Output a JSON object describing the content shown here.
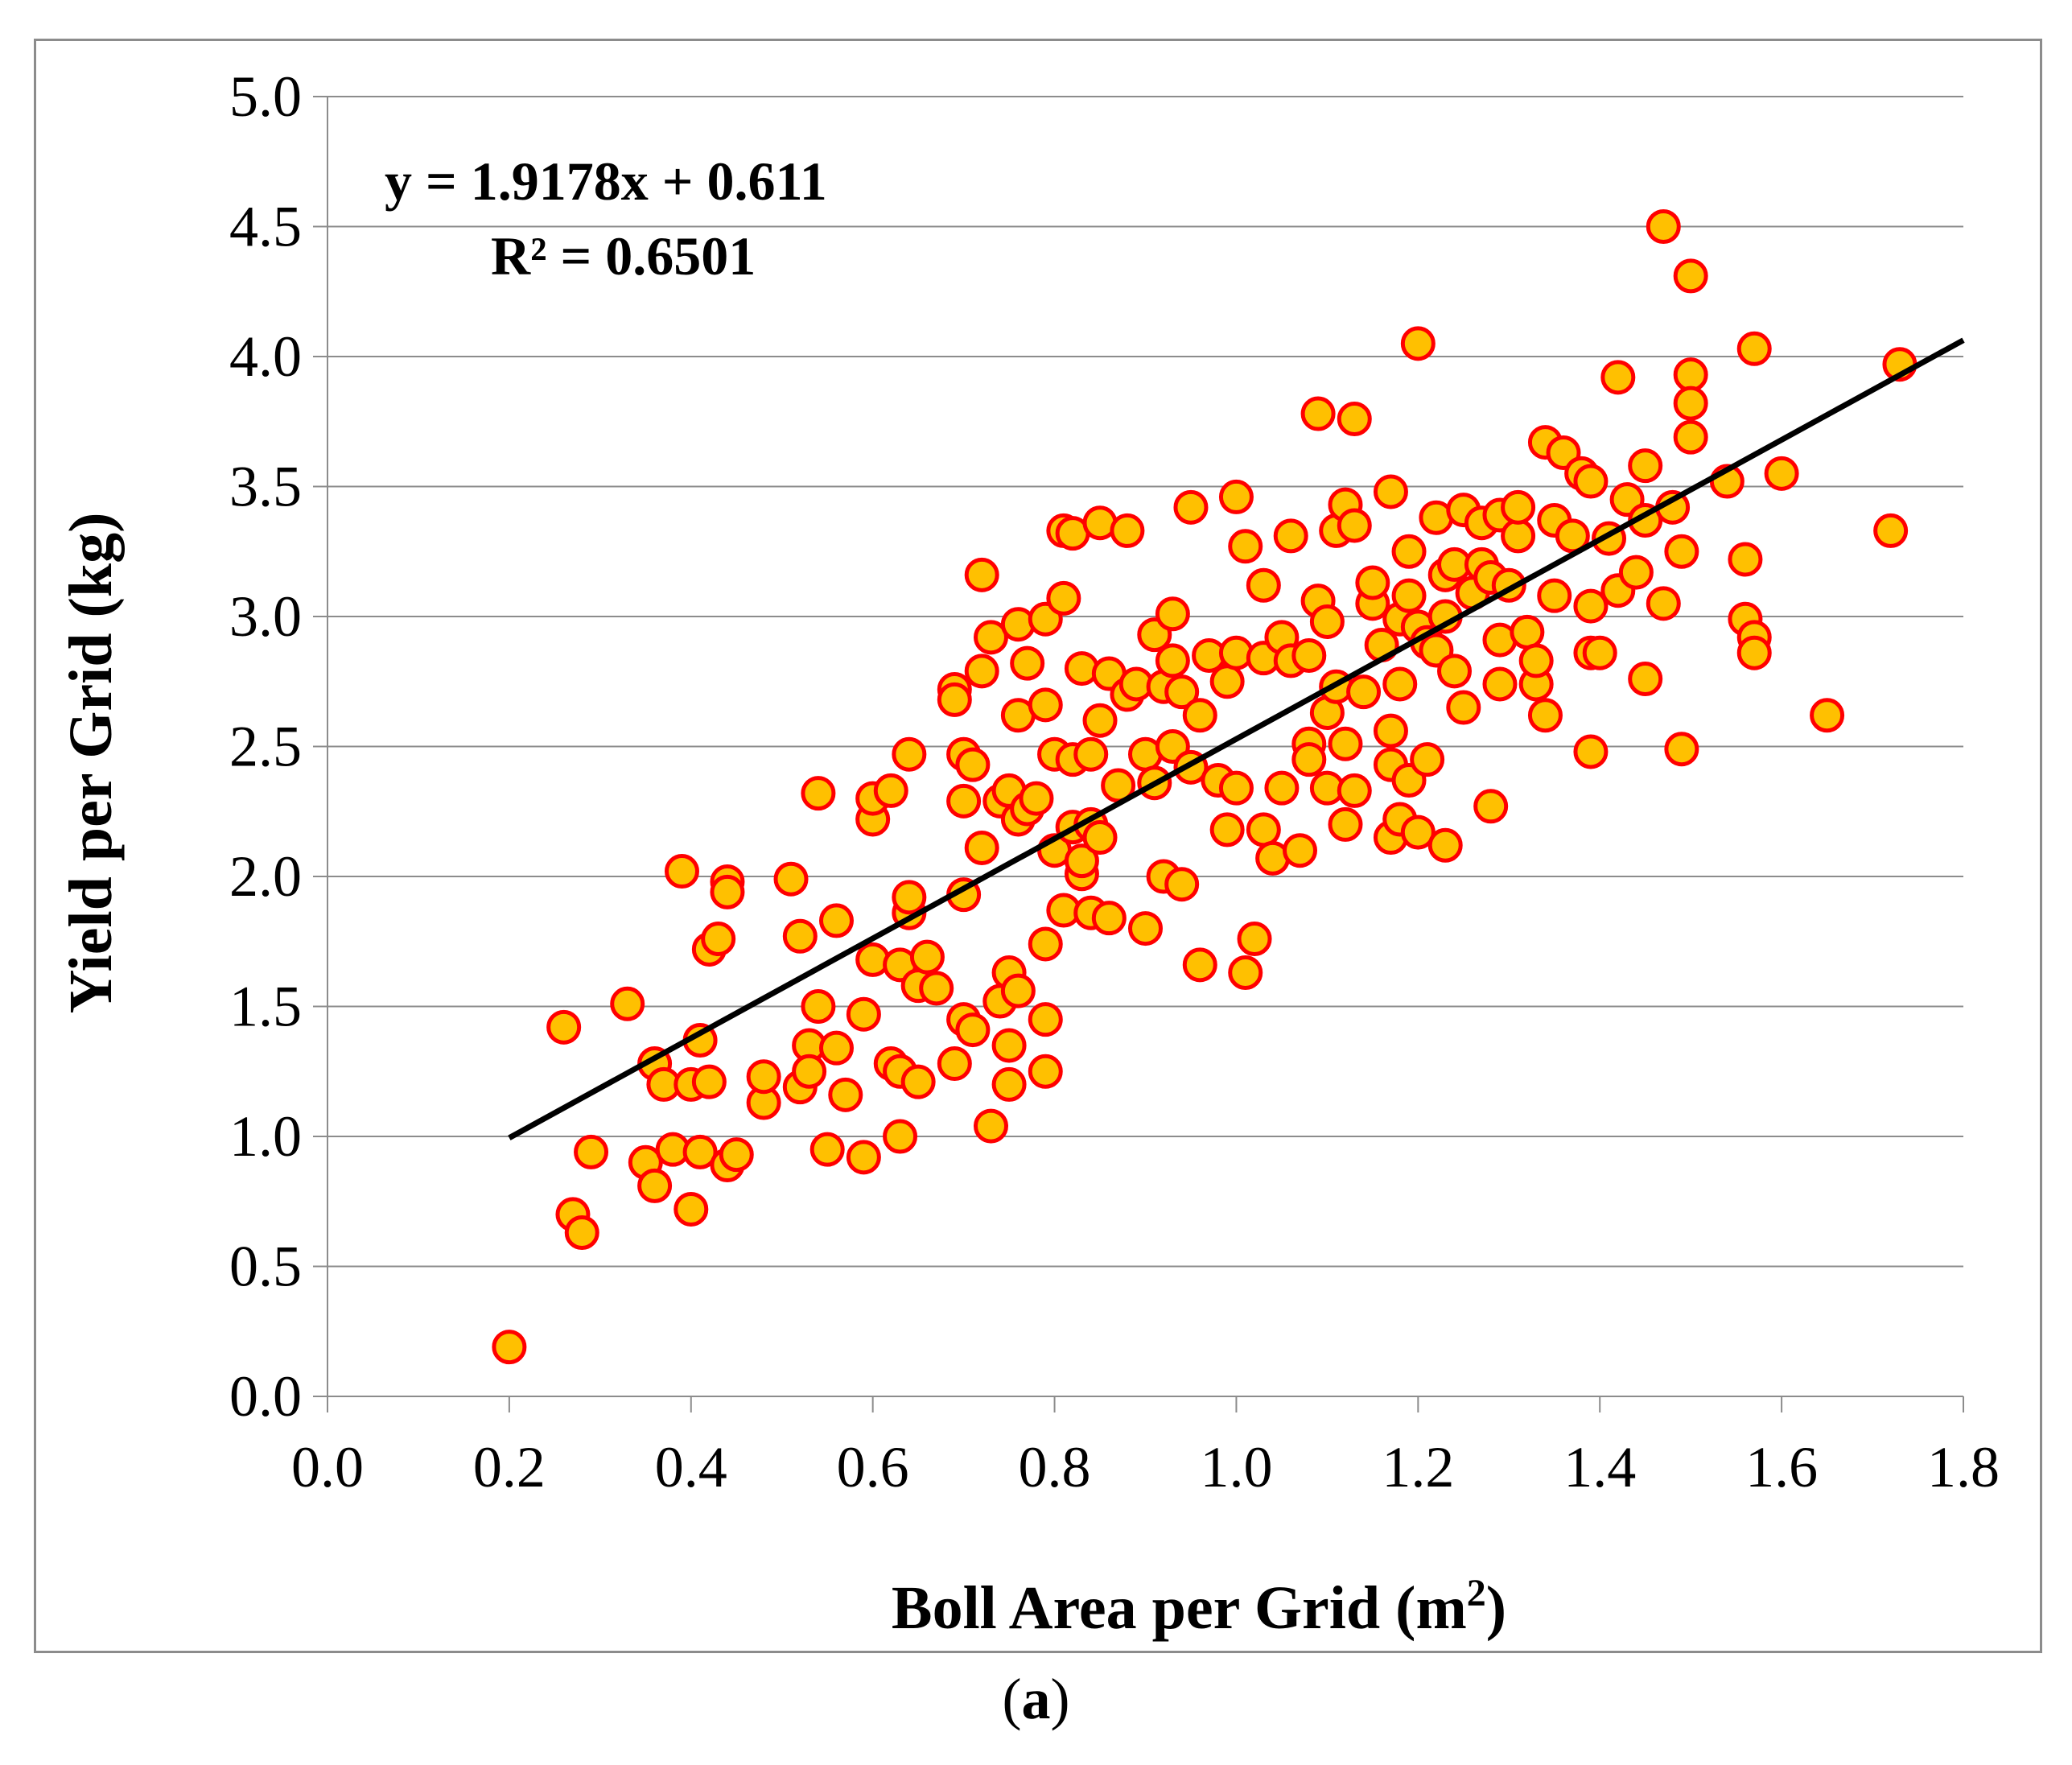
{
  "chart_data": {
    "type": "scatter",
    "xlabel": "Boll Area per Grid (m",
    "xlabel_sup": "2",
    "xlabel_end": ")",
    "ylabel": "Yield per Grid (kg)",
    "xlim": [
      0.0,
      1.8
    ],
    "ylim": [
      0.0,
      5.0
    ],
    "x_ticks": [
      "0.0",
      "0.2",
      "0.4",
      "0.6",
      "0.8",
      "1.0",
      "1.2",
      "1.4",
      "1.6",
      "1.8"
    ],
    "y_ticks": [
      "0.0",
      "0.5",
      "1.0",
      "1.5",
      "2.0",
      "2.5",
      "3.0",
      "3.5",
      "4.0",
      "4.5",
      "5.0"
    ],
    "grid": true,
    "equation": "y = 1.9178x + 0.611",
    "r_squared": "R² = 0.6501",
    "trendline": {
      "slope": 1.9178,
      "intercept": 0.611,
      "x_start": 0.2,
      "x_end": 1.8
    },
    "marker_fill": "#ffc000",
    "marker_edge": "#ff0000",
    "line_color": "#000000",
    "points": [
      [
        0.2,
        0.19
      ],
      [
        0.26,
        1.42
      ],
      [
        0.27,
        0.7
      ],
      [
        0.28,
        0.63
      ],
      [
        0.29,
        0.94
      ],
      [
        0.33,
        1.51
      ],
      [
        0.35,
        0.9
      ],
      [
        0.36,
        0.81
      ],
      [
        0.36,
        1.28
      ],
      [
        0.37,
        1.2
      ],
      [
        0.38,
        0.95
      ],
      [
        0.39,
        2.02
      ],
      [
        0.4,
        0.72
      ],
      [
        0.4,
        1.2
      ],
      [
        0.41,
        1.37
      ],
      [
        0.41,
        0.94
      ],
      [
        0.42,
        1.21
      ],
      [
        0.42,
        1.72
      ],
      [
        0.43,
        1.76
      ],
      [
        0.44,
        0.89
      ],
      [
        0.44,
        1.98
      ],
      [
        0.44,
        1.94
      ],
      [
        0.45,
        0.93
      ],
      [
        0.48,
        1.13
      ],
      [
        0.48,
        1.23
      ],
      [
        0.51,
        1.99
      ],
      [
        0.52,
        1.19
      ],
      [
        0.52,
        1.77
      ],
      [
        0.53,
        1.35
      ],
      [
        0.53,
        1.25
      ],
      [
        0.54,
        1.5
      ],
      [
        0.54,
        2.32
      ],
      [
        0.55,
        0.95
      ],
      [
        0.56,
        1.34
      ],
      [
        0.56,
        1.83
      ],
      [
        0.57,
        1.16
      ],
      [
        0.59,
        0.92
      ],
      [
        0.59,
        1.47
      ],
      [
        0.6,
        1.68
      ],
      [
        0.6,
        2.22
      ],
      [
        0.6,
        2.3
      ],
      [
        0.62,
        2.33
      ],
      [
        0.62,
        1.28
      ],
      [
        0.63,
        1.25
      ],
      [
        0.63,
        1.0
      ],
      [
        0.63,
        1.66
      ],
      [
        0.64,
        1.86
      ],
      [
        0.64,
        1.92
      ],
      [
        0.64,
        2.47
      ],
      [
        0.65,
        1.58
      ],
      [
        0.65,
        1.21
      ],
      [
        0.66,
        1.69
      ],
      [
        0.67,
        1.57
      ],
      [
        0.69,
        2.72
      ],
      [
        0.69,
        2.68
      ],
      [
        0.69,
        1.28
      ],
      [
        0.7,
        1.45
      ],
      [
        0.7,
        2.29
      ],
      [
        0.7,
        2.47
      ],
      [
        0.7,
        1.93
      ],
      [
        0.71,
        2.43
      ],
      [
        0.71,
        1.41
      ],
      [
        0.72,
        3.16
      ],
      [
        0.72,
        2.11
      ],
      [
        0.72,
        2.79
      ],
      [
        0.73,
        1.04
      ],
      [
        0.73,
        2.92
      ],
      [
        0.74,
        1.52
      ],
      [
        0.74,
        2.29
      ],
      [
        0.75,
        1.63
      ],
      [
        0.75,
        1.35
      ],
      [
        0.75,
        1.2
      ],
      [
        0.75,
        2.33
      ],
      [
        0.76,
        2.62
      ],
      [
        0.76,
        2.22
      ],
      [
        0.76,
        2.97
      ],
      [
        0.76,
        1.56
      ],
      [
        0.77,
        2.82
      ],
      [
        0.77,
        2.26
      ],
      [
        0.78,
        2.3
      ],
      [
        0.79,
        2.66
      ],
      [
        0.79,
        1.45
      ],
      [
        0.79,
        1.25
      ],
      [
        0.79,
        1.74
      ],
      [
        0.79,
        2.99
      ],
      [
        0.8,
        2.1
      ],
      [
        0.8,
        2.47
      ],
      [
        0.81,
        3.33
      ],
      [
        0.81,
        1.87
      ],
      [
        0.81,
        3.07
      ],
      [
        0.82,
        2.45
      ],
      [
        0.82,
        3.32
      ],
      [
        0.82,
        2.19
      ],
      [
        0.83,
        2.01
      ],
      [
        0.83,
        2.06
      ],
      [
        0.83,
        2.8
      ],
      [
        0.84,
        2.2
      ],
      [
        0.84,
        2.47
      ],
      [
        0.84,
        1.86
      ],
      [
        0.85,
        3.36
      ],
      [
        0.85,
        2.15
      ],
      [
        0.85,
        2.6
      ],
      [
        0.86,
        1.84
      ],
      [
        0.86,
        2.78
      ],
      [
        0.87,
        2.35
      ],
      [
        0.88,
        3.33
      ],
      [
        0.88,
        2.7
      ],
      [
        0.89,
        2.74
      ],
      [
        0.9,
        2.47
      ],
      [
        0.9,
        1.8
      ],
      [
        0.91,
        2.93
      ],
      [
        0.91,
        2.36
      ],
      [
        0.92,
        2.73
      ],
      [
        0.92,
        2.0
      ],
      [
        0.93,
        2.5
      ],
      [
        0.93,
        2.83
      ],
      [
        0.93,
        3.01
      ],
      [
        0.94,
        1.97
      ],
      [
        0.94,
        2.71
      ],
      [
        0.95,
        3.42
      ],
      [
        0.95,
        2.42
      ],
      [
        0.96,
        1.66
      ],
      [
        0.96,
        2.62
      ],
      [
        0.97,
        2.85
      ],
      [
        0.98,
        2.37
      ],
      [
        0.99,
        2.18
      ],
      [
        0.99,
        2.75
      ],
      [
        1.0,
        2.86
      ],
      [
        1.0,
        2.34
      ],
      [
        1.0,
        3.46
      ],
      [
        1.01,
        1.63
      ],
      [
        1.01,
        3.27
      ],
      [
        1.02,
        1.76
      ],
      [
        1.03,
        2.18
      ],
      [
        1.03,
        2.84
      ],
      [
        1.03,
        3.12
      ],
      [
        1.04,
        2.07
      ],
      [
        1.05,
        2.92
      ],
      [
        1.05,
        2.34
      ],
      [
        1.06,
        2.83
      ],
      [
        1.06,
        3.31
      ],
      [
        1.07,
        2.1
      ],
      [
        1.08,
        2.51
      ],
      [
        1.08,
        2.45
      ],
      [
        1.08,
        2.85
      ],
      [
        1.09,
        3.06
      ],
      [
        1.09,
        3.78
      ],
      [
        1.1,
        2.63
      ],
      [
        1.1,
        2.98
      ],
      [
        1.1,
        2.34
      ],
      [
        1.11,
        2.73
      ],
      [
        1.11,
        3.33
      ],
      [
        1.12,
        2.51
      ],
      [
        1.12,
        3.43
      ],
      [
        1.12,
        2.2
      ],
      [
        1.13,
        3.35
      ],
      [
        1.13,
        3.76
      ],
      [
        1.13,
        2.33
      ],
      [
        1.14,
        2.71
      ],
      [
        1.15,
        3.05
      ],
      [
        1.15,
        3.13
      ],
      [
        1.16,
        2.89
      ],
      [
        1.17,
        2.15
      ],
      [
        1.17,
        2.56
      ],
      [
        1.17,
        2.43
      ],
      [
        1.17,
        3.48
      ],
      [
        1.18,
        2.22
      ],
      [
        1.18,
        2.99
      ],
      [
        1.18,
        2.74
      ],
      [
        1.19,
        3.25
      ],
      [
        1.19,
        2.37
      ],
      [
        1.19,
        3.08
      ],
      [
        1.2,
        2.17
      ],
      [
        1.2,
        2.96
      ],
      [
        1.2,
        4.05
      ],
      [
        1.21,
        2.45
      ],
      [
        1.21,
        2.9
      ],
      [
        1.22,
        3.38
      ],
      [
        1.22,
        2.87
      ],
      [
        1.23,
        2.12
      ],
      [
        1.23,
        3.0
      ],
      [
        1.23,
        3.16
      ],
      [
        1.24,
        2.79
      ],
      [
        1.24,
        3.2
      ],
      [
        1.25,
        2.65
      ],
      [
        1.25,
        3.41
      ],
      [
        1.26,
        3.09
      ],
      [
        1.27,
        3.2
      ],
      [
        1.27,
        3.36
      ],
      [
        1.28,
        2.27
      ],
      [
        1.28,
        3.15
      ],
      [
        1.29,
        2.74
      ],
      [
        1.29,
        3.39
      ],
      [
        1.29,
        2.91
      ],
      [
        1.3,
        3.12
      ],
      [
        1.31,
        3.31
      ],
      [
        1.31,
        3.42
      ],
      [
        1.32,
        2.94
      ],
      [
        1.33,
        2.74
      ],
      [
        1.33,
        2.83
      ],
      [
        1.34,
        2.62
      ],
      [
        1.34,
        3.67
      ],
      [
        1.35,
        3.37
      ],
      [
        1.35,
        3.08
      ],
      [
        1.36,
        3.63
      ],
      [
        1.37,
        3.31
      ],
      [
        1.38,
        3.55
      ],
      [
        1.39,
        3.52
      ],
      [
        1.39,
        3.04
      ],
      [
        1.39,
        2.48
      ],
      [
        1.39,
        2.86
      ],
      [
        1.4,
        2.86
      ],
      [
        1.41,
        3.3
      ],
      [
        1.42,
        3.92
      ],
      [
        1.42,
        3.1
      ],
      [
        1.43,
        3.45
      ],
      [
        1.44,
        3.17
      ],
      [
        1.45,
        3.37
      ],
      [
        1.45,
        3.58
      ],
      [
        1.45,
        2.76
      ],
      [
        1.47,
        3.05
      ],
      [
        1.47,
        4.5
      ],
      [
        1.48,
        3.42
      ],
      [
        1.49,
        2.49
      ],
      [
        1.49,
        3.25
      ],
      [
        1.5,
        3.93
      ],
      [
        1.5,
        3.82
      ],
      [
        1.5,
        3.69
      ],
      [
        1.5,
        4.31
      ],
      [
        1.54,
        3.52
      ],
      [
        1.56,
        3.22
      ],
      [
        1.56,
        2.99
      ],
      [
        1.57,
        2.92
      ],
      [
        1.57,
        2.86
      ],
      [
        1.57,
        4.03
      ],
      [
        1.6,
        3.55
      ],
      [
        1.65,
        2.62
      ],
      [
        1.72,
        3.33
      ],
      [
        1.73,
        3.97
      ]
    ]
  },
  "caption": {
    "open": "(",
    "letter": "a",
    "close": ")"
  }
}
